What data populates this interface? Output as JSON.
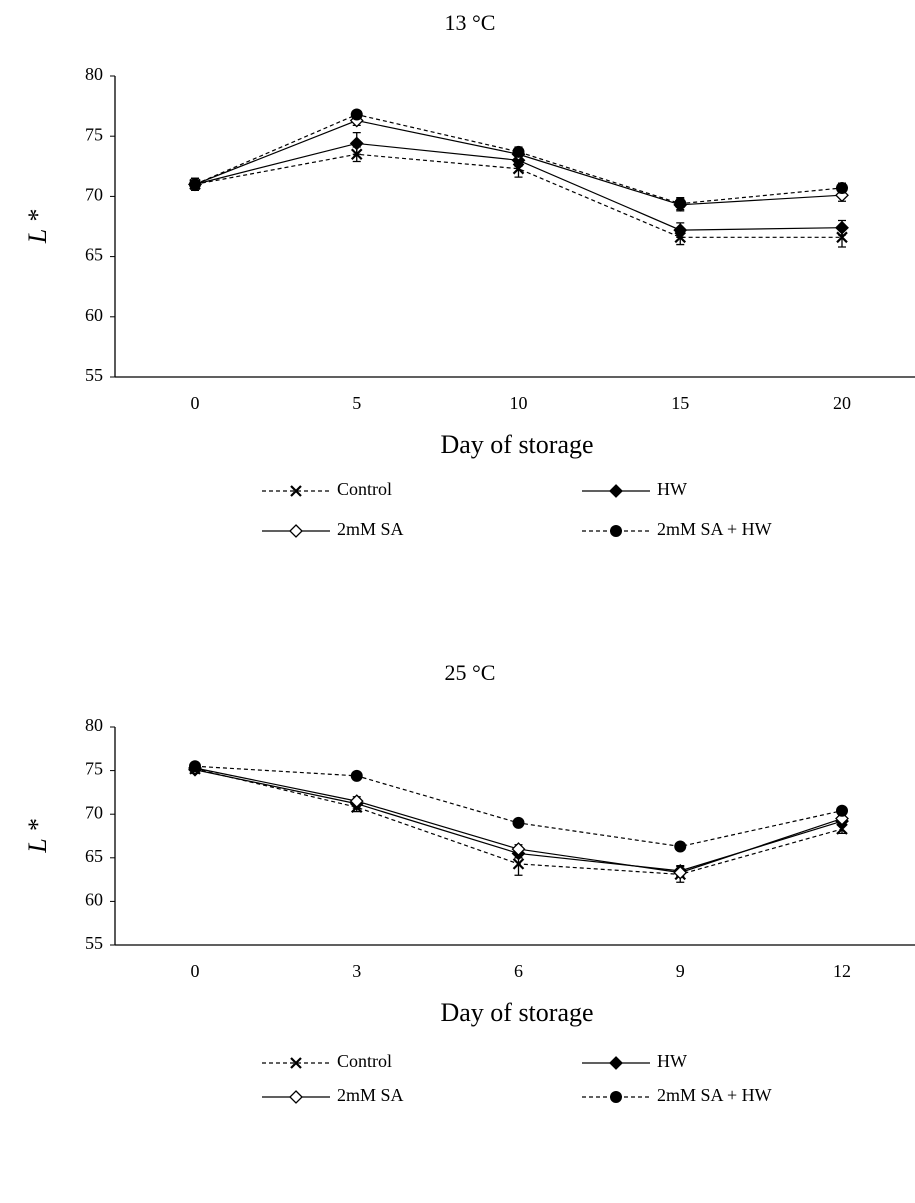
{
  "chart_data": [
    {
      "type": "line",
      "title": "13 °C",
      "x_label": "Day of storage",
      "y_label": "L *",
      "categories": [
        "0",
        "5",
        "10",
        "15",
        "20"
      ],
      "ylim": [
        55,
        80
      ],
      "yticks": [
        55,
        60,
        65,
        70,
        75,
        80
      ],
      "series": [
        {
          "name": "Control",
          "color": "#000000",
          "dash": true,
          "marker": "x",
          "values": [
            71,
            73.5,
            72.3,
            66.6,
            66.6
          ],
          "errors": [
            0.5,
            0.6,
            0.7,
            0.6,
            0.8
          ]
        },
        {
          "name": "HW",
          "color": "#000000",
          "dash": false,
          "marker": "diamond",
          "values": [
            71,
            74.4,
            73,
            67.2,
            67.4
          ],
          "errors": [
            0.5,
            0.9,
            0.5,
            0.6,
            0.6
          ]
        },
        {
          "name": "2mM SA",
          "color": "#000000",
          "dash": false,
          "marker": "open-diamond",
          "values": [
            71,
            76.3,
            73.5,
            69.3,
            70.1
          ],
          "errors": [
            0.5,
            0.4,
            0.4,
            0.5,
            0.5
          ]
        },
        {
          "name": "2mM SA + HW",
          "color": "#000000",
          "dash": true,
          "marker": "circle",
          "values": [
            71,
            76.8,
            73.7,
            69.4,
            70.7
          ],
          "errors": [
            0.5,
            0.3,
            0.4,
            0.5,
            0.4
          ]
        }
      ]
    },
    {
      "type": "line",
      "title": "25 °C",
      "x_label": "Day of storage",
      "y_label": "L *",
      "categories": [
        "0",
        "3",
        "6",
        "9",
        "12"
      ],
      "ylim": [
        55,
        80
      ],
      "yticks": [
        55,
        60,
        65,
        70,
        75,
        80
      ],
      "series": [
        {
          "name": "Control",
          "color": "#000000",
          "dash": true,
          "marker": "x",
          "values": [
            75.2,
            70.8,
            64.3,
            63.1,
            68.3
          ],
          "errors": [
            0.4,
            0.5,
            1.3,
            0.9,
            0.5
          ]
        },
        {
          "name": "HW",
          "color": "#000000",
          "dash": false,
          "marker": "diamond",
          "values": [
            75.1,
            71.2,
            65.5,
            63.5,
            69.2
          ],
          "errors": [
            0.4,
            0.5,
            0.5,
            0.6,
            0.4
          ]
        },
        {
          "name": "2mM SA",
          "color": "#000000",
          "dash": false,
          "marker": "open-diamond",
          "values": [
            75.3,
            71.5,
            66,
            63.3,
            69.5
          ],
          "errors": [
            0.4,
            0.5,
            0.5,
            0.5,
            0.4
          ]
        },
        {
          "name": "2mM SA + HW",
          "color": "#000000",
          "dash": true,
          "marker": "circle",
          "values": [
            75.5,
            74.4,
            69,
            66.3,
            70.4
          ],
          "errors": [
            0.4,
            0.4,
            0.3,
            0.3,
            0.4
          ]
        }
      ]
    }
  ]
}
